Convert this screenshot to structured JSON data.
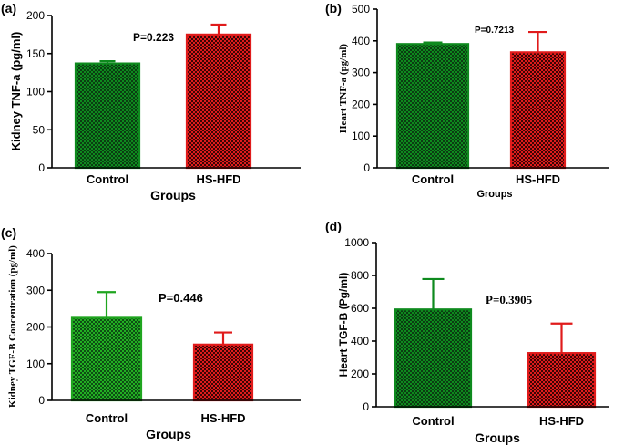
{
  "chart_data": [
    {
      "type": "bar",
      "panel": "(a)",
      "categories": [
        "Control",
        "HS-HFD"
      ],
      "values": [
        137,
        175
      ],
      "errors": [
        3,
        13
      ],
      "ylabel": "Kidney TNF-a (pg/ml)",
      "xlabel": "Groups",
      "annotation": "P=0.223",
      "ylim": [
        0,
        200
      ],
      "yticks": [
        0,
        50,
        100,
        150,
        200
      ],
      "colors": {
        "Control": "#0e8a1e",
        "HS-HFD": "#e01b1b"
      }
    },
    {
      "type": "bar",
      "panel": "(b)",
      "categories": [
        "Control",
        "HS-HFD"
      ],
      "values": [
        390,
        364
      ],
      "errors": [
        5,
        64
      ],
      "ylabel": "Heart TNF-a (pg/ml)",
      "xlabel": "Groups",
      "annotation": "P=0.7213",
      "ylim": [
        0,
        500
      ],
      "yticks": [
        0,
        100,
        200,
        300,
        400,
        500
      ],
      "colors": {
        "Control": "#0e8a1e",
        "HS-HFD": "#e01b1b"
      }
    },
    {
      "type": "bar",
      "panel": "(c)",
      "categories": [
        "Control",
        "HS-HFD"
      ],
      "values": [
        225,
        152
      ],
      "errors": [
        70,
        33
      ],
      "ylabel": "Kidney TGF-B Concentration (pg/ml)",
      "xlabel": "Groups",
      "annotation": "P=0.446",
      "ylim": [
        0,
        400
      ],
      "yticks": [
        0,
        100,
        200,
        300,
        400
      ],
      "colors": {
        "Control": "#1fa51f",
        "HS-HFD": "#e01b1b"
      }
    },
    {
      "type": "bar",
      "panel": "(d)",
      "categories": [
        "Control",
        "HS-HFD"
      ],
      "values": [
        593,
        327
      ],
      "errors": [
        185,
        180
      ],
      "ylabel": "Heart TGF-B (Pg/ml)",
      "xlabel": "Groups",
      "annotation": "P=0.3905",
      "ylim": [
        0,
        1000
      ],
      "yticks": [
        0,
        200,
        400,
        600,
        800,
        1000
      ],
      "colors": {
        "Control": "#0e8a1e",
        "HS-HFD": "#e01b1b"
      }
    }
  ]
}
